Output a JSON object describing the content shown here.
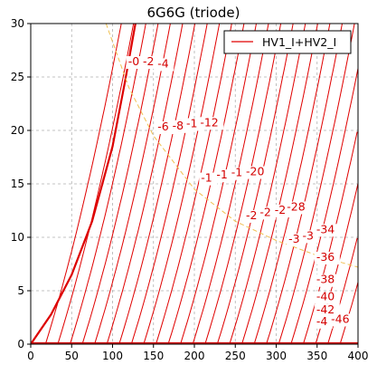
{
  "chart_data": {
    "type": "line",
    "title": "6G6G (triode)",
    "xlabel": "",
    "ylabel": "",
    "xlim": [
      0,
      400
    ],
    "ylim": [
      0,
      30
    ],
    "x_ticks": [
      0,
      50,
      100,
      150,
      200,
      250,
      300,
      350,
      400
    ],
    "y_ticks": [
      0,
      5,
      10,
      15,
      20,
      25,
      30
    ],
    "grid": true,
    "grid_style": "dashed",
    "legend": {
      "position": "top-right",
      "entries": [
        "HV1_I+HV2_I"
      ]
    },
    "colors": {
      "curves": "#e00000",
      "bold_curve": "#dd0000",
      "dissipation_line": "#f0c050",
      "grid": "#b0b0b0"
    },
    "bold_curve": {
      "x": [
        0,
        25,
        50,
        75,
        100,
        115,
        128
      ],
      "y": [
        0,
        2.8,
        6.5,
        11.5,
        18.5,
        24.5,
        30
      ]
    },
    "family_curves": {
      "x_start_min": 18,
      "x_start_step": 15,
      "count": 25,
      "slope": 0.245,
      "curvature": 0.00085
    },
    "dissipation_curve": {
      "x": [
        92,
        120,
        150,
        200,
        250,
        300,
        350,
        400
      ],
      "y": [
        30,
        24,
        19.5,
        14.5,
        11.5,
        9.7,
        8.3,
        7.2
      ]
    },
    "curve_labels": [
      {
        "text": "-0",
        "x": 119,
        "y": 26.1
      },
      {
        "text": "-2",
        "x": 137,
        "y": 26.1
      },
      {
        "text": "-4",
        "x": 155,
        "y": 25.9
      },
      {
        "text": "-6",
        "x": 155,
        "y": 20.0
      },
      {
        "text": "-8",
        "x": 173,
        "y": 20.1
      },
      {
        "text": "-1",
        "x": 190,
        "y": 20.3
      },
      {
        "text": "-12",
        "x": 207,
        "y": 20.4
      },
      {
        "text": "-1",
        "x": 208,
        "y": 15.2
      },
      {
        "text": "-1",
        "x": 227,
        "y": 15.5
      },
      {
        "text": "-1",
        "x": 245,
        "y": 15.7
      },
      {
        "text": "-20",
        "x": 263,
        "y": 15.8
      },
      {
        "text": "-2",
        "x": 263,
        "y": 11.7
      },
      {
        "text": "-2",
        "x": 280,
        "y": 12.0
      },
      {
        "text": "-2",
        "x": 298,
        "y": 12.2
      },
      {
        "text": "-28",
        "x": 313,
        "y": 12.5
      },
      {
        "text": "-3",
        "x": 315,
        "y": 9.5
      },
      {
        "text": "-3",
        "x": 332,
        "y": 9.8
      },
      {
        "text": "-34",
        "x": 349,
        "y": 10.4
      },
      {
        "text": "-36",
        "x": 349,
        "y": 7.8
      },
      {
        "text": "-38",
        "x": 349,
        "y": 5.7
      },
      {
        "text": "-40",
        "x": 349,
        "y": 4.1
      },
      {
        "text": "-42",
        "x": 349,
        "y": 2.9
      },
      {
        "text": "-4",
        "x": 349,
        "y": 1.8
      },
      {
        "text": "-46",
        "x": 367,
        "y": 2.0
      }
    ]
  }
}
